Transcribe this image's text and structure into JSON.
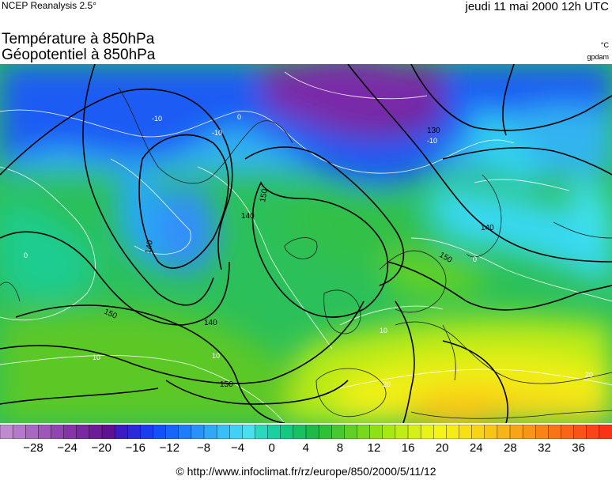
{
  "header": {
    "source": "NCEP Reanalysis 2.5°",
    "datetime": "jeudi 11 mai 2000 12h UTC",
    "title_line1": "Température à 850hPa",
    "title_line2": "Géopotentiel à 850hPa",
    "unit_temperature": "°C",
    "unit_geopotential": "gpdam"
  },
  "map": {
    "region": "Europe / North Atlantic",
    "isotherm_labels": [
      "-10",
      "-10",
      "-10",
      "0",
      "0",
      "0",
      "10",
      "10",
      "10",
      "20",
      "20"
    ],
    "isohypse_labels": [
      "140",
      "140",
      "140",
      "140",
      "150",
      "150",
      "150",
      "150",
      "130"
    ]
  },
  "colorbar": {
    "tick_labels": [
      "−28",
      "−24",
      "−20",
      "−16",
      "−12",
      "−8",
      "−4",
      "0",
      "4",
      "8",
      "12",
      "16",
      "20",
      "24",
      "28",
      "32",
      "36"
    ],
    "colors": [
      "#c08ad0",
      "#b479c8",
      "#a868c0",
      "#9c57b8",
      "#9046b0",
      "#8436a8",
      "#7828a0",
      "#6c1c98",
      "#601090",
      "#3a1cc0",
      "#2a2ad8",
      "#1c3cf0",
      "#1450f8",
      "#1866f8",
      "#207cf8",
      "#2892f8",
      "#30a8f8",
      "#38bef8",
      "#40d0f8",
      "#48e0f0",
      "#2ad8c0",
      "#1ad0a0",
      "#14c880",
      "#18c060",
      "#20b848",
      "#30c038",
      "#48c830",
      "#60d028",
      "#78d820",
      "#90e018",
      "#a8e818",
      "#c0ec18",
      "#d4f018",
      "#e8f418",
      "#f4f418",
      "#f8ec18",
      "#f8e018",
      "#f8d418",
      "#f8c418",
      "#f8b418",
      "#f8a418",
      "#f89418",
      "#f88418",
      "#f87418",
      "#f86418",
      "#f85418",
      "#f84418",
      "#f83418"
    ]
  },
  "footer": {
    "credit": "© http://www.infoclimat.fr/rz/europe/850/2000/5/11/12"
  }
}
